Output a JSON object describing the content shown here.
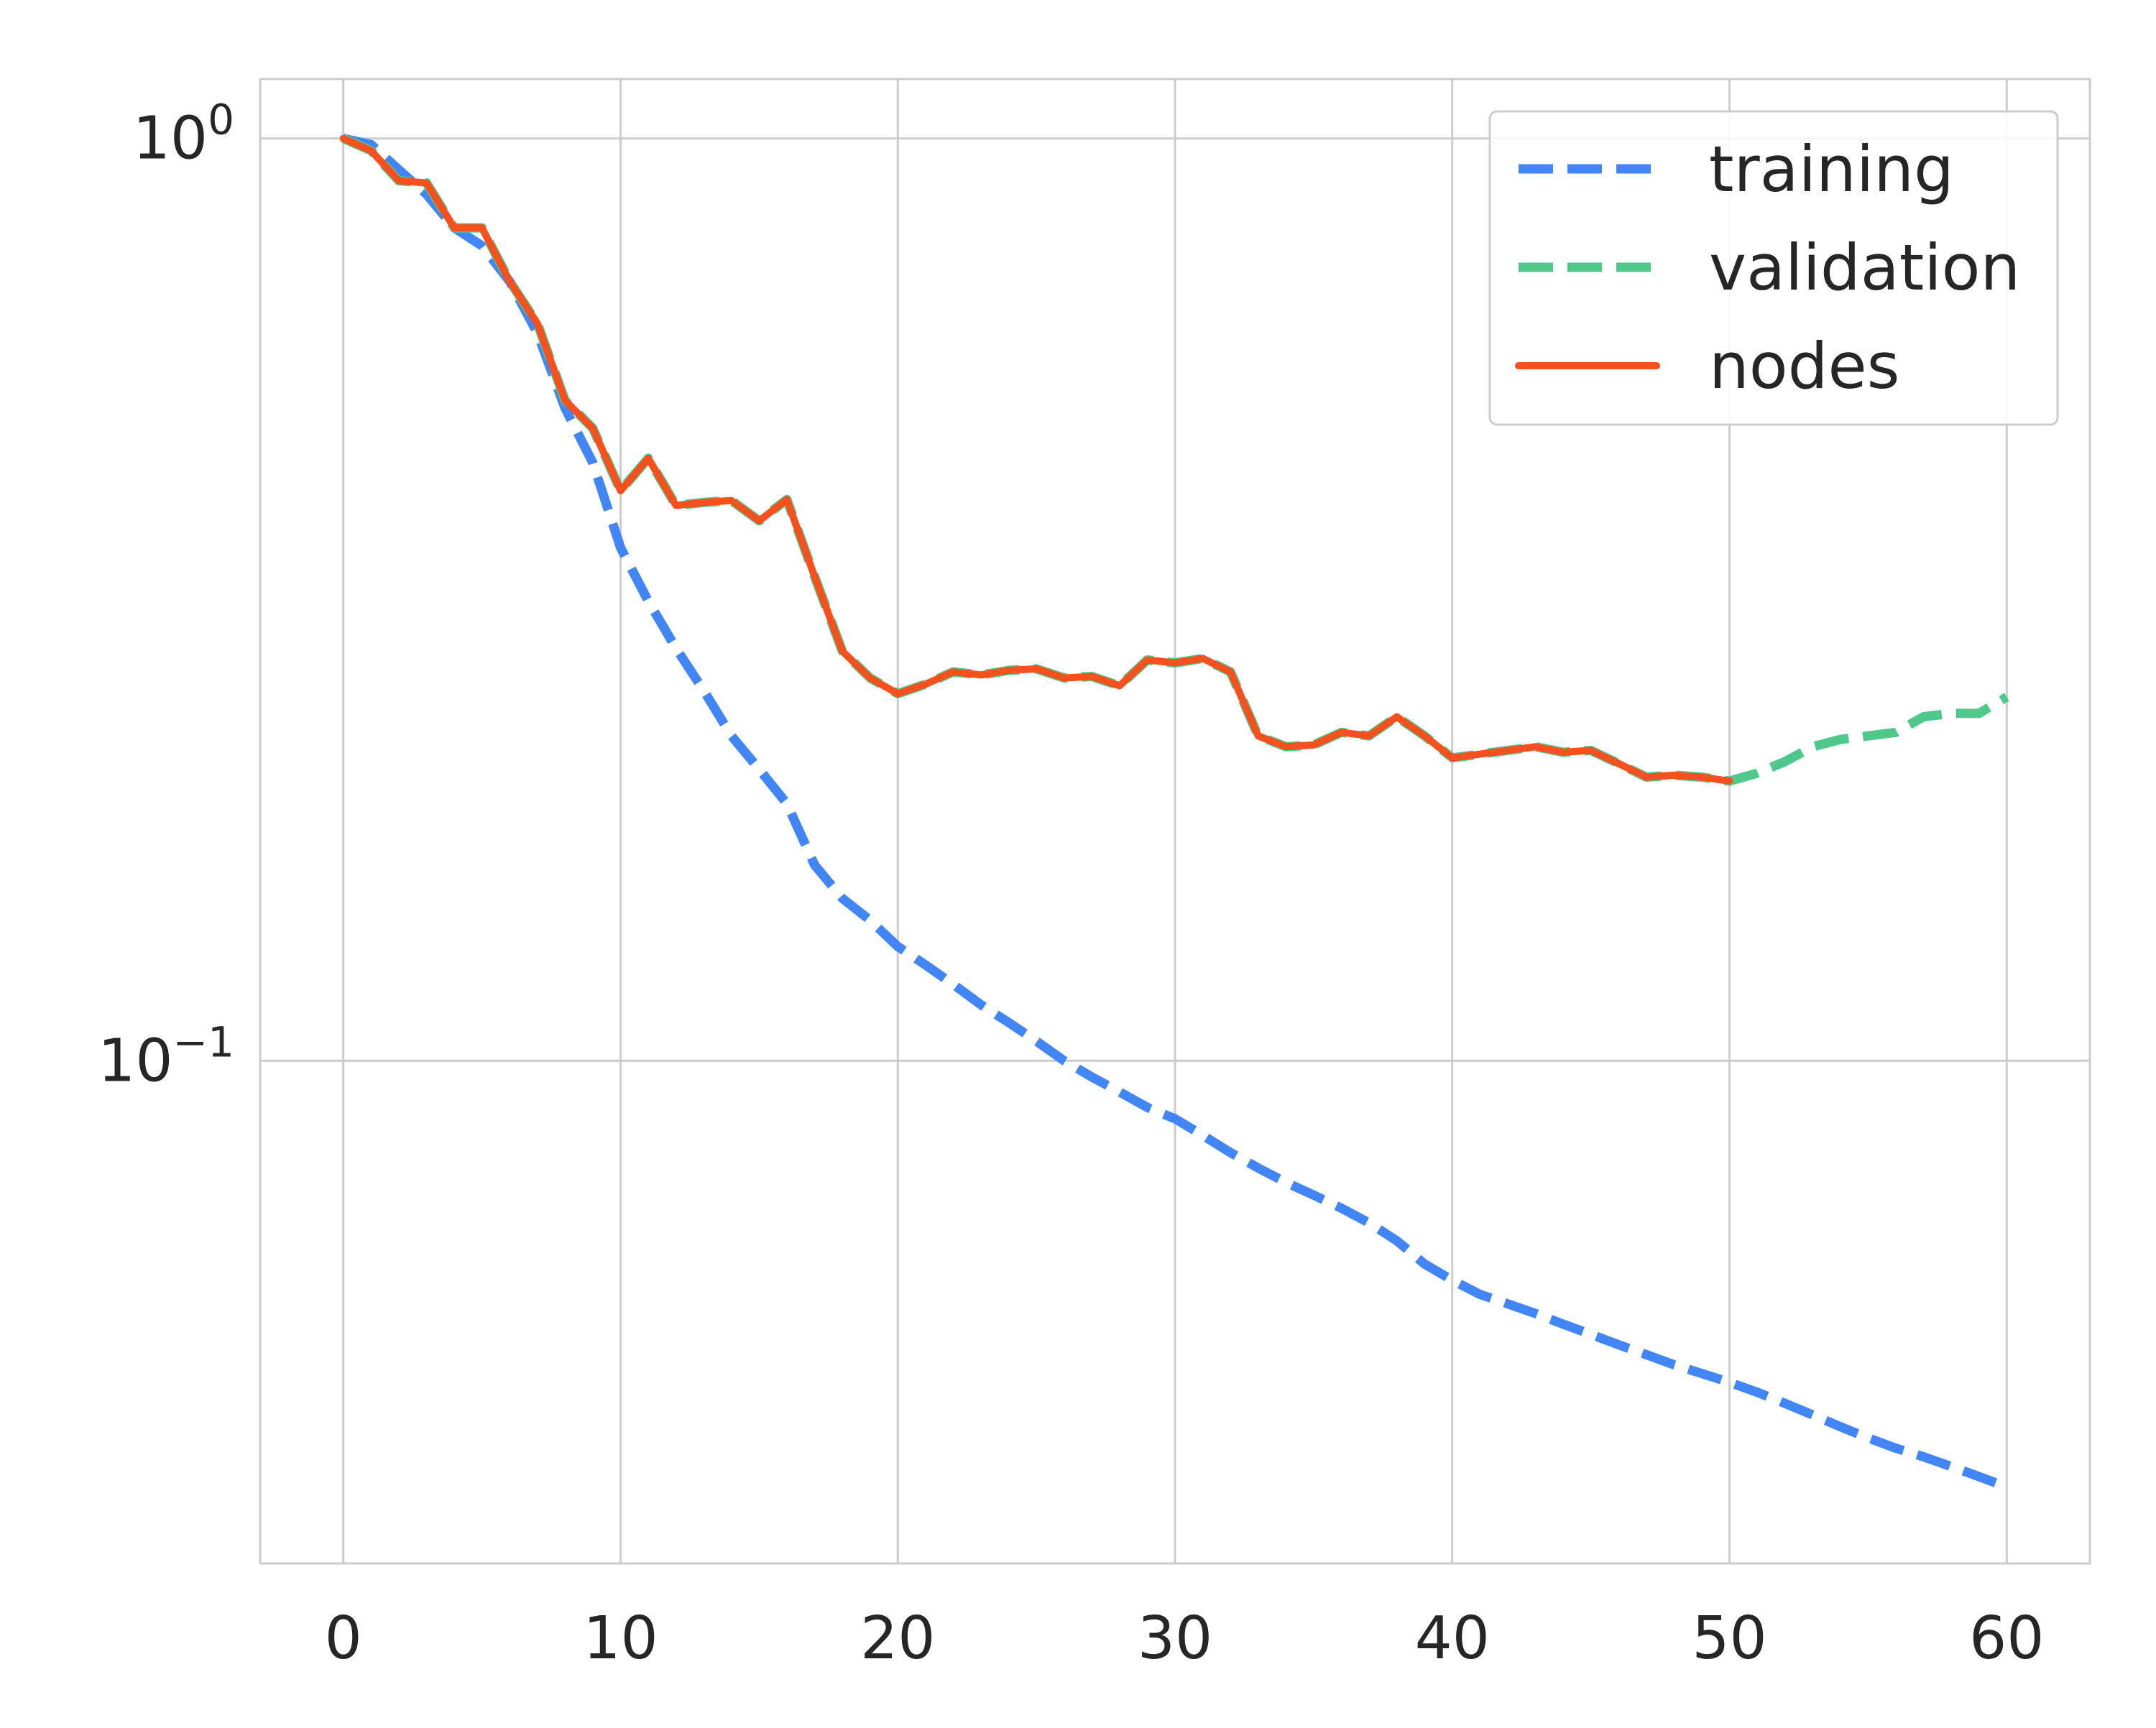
{
  "chart_data": {
    "type": "line",
    "title": "",
    "xlabel": "",
    "ylabel": "",
    "y_scale": "log",
    "xlim": [
      -3,
      63
    ],
    "ylim": [
      0.0285,
      1.16
    ],
    "x_ticks": [
      {
        "value": 0,
        "label": "0"
      },
      {
        "value": 10,
        "label": "10"
      },
      {
        "value": 20,
        "label": "20"
      },
      {
        "value": 30,
        "label": "30"
      },
      {
        "value": 40,
        "label": "40"
      },
      {
        "value": 50,
        "label": "50"
      },
      {
        "value": 60,
        "label": "60"
      }
    ],
    "y_ticks": [
      {
        "value": 1,
        "base": "10",
        "exponent": "0"
      },
      {
        "value": 0.1,
        "base": "10",
        "exponent": "−1"
      }
    ],
    "grid": true,
    "legend_position": "top-right",
    "series": [
      {
        "name": "training",
        "color": "#4285f4",
        "style": "dashed",
        "x": [
          0,
          1,
          2,
          3,
          4,
          5,
          6,
          7,
          8,
          9,
          10,
          11,
          12,
          13,
          14,
          15,
          16,
          17,
          18,
          19,
          20,
          21,
          22,
          23,
          24,
          25,
          26,
          27,
          28,
          29,
          30,
          31,
          32,
          33,
          34,
          35,
          36,
          37,
          38,
          39,
          40,
          41,
          42,
          43,
          44,
          45,
          46,
          47,
          48,
          49,
          50,
          51,
          52,
          53,
          54,
          55,
          56,
          57,
          58,
          59,
          60
        ],
        "y": [
          1.0,
          0.985,
          0.925,
          0.87,
          0.8,
          0.765,
          0.7,
          0.615,
          0.51,
          0.445,
          0.36,
          0.315,
          0.28,
          0.252,
          0.225,
          0.207,
          0.19,
          0.163,
          0.15,
          0.142,
          0.133,
          0.127,
          0.121,
          0.115,
          0.11,
          0.105,
          0.1,
          0.096,
          0.0925,
          0.089,
          0.0865,
          0.083,
          0.0795,
          0.0765,
          0.0738,
          0.0715,
          0.0692,
          0.0667,
          0.0638,
          0.0602,
          0.0578,
          0.0558,
          0.0545,
          0.0532,
          0.0518,
          0.0505,
          0.0492,
          0.048,
          0.0468,
          0.0458,
          0.0448,
          0.0437,
          0.0425,
          0.0413,
          0.0401,
          0.039,
          0.038,
          0.0372,
          0.0363,
          0.0354,
          0.0345
        ]
      },
      {
        "name": "validation",
        "color": "#4fc98b",
        "style": "dashed",
        "x": [
          0,
          1,
          2,
          3,
          4,
          5,
          6,
          7,
          8,
          9,
          10,
          11,
          12,
          13,
          14,
          15,
          16,
          17,
          18,
          19,
          20,
          21,
          22,
          23,
          24,
          25,
          26,
          27,
          28,
          29,
          30,
          31,
          32,
          33,
          34,
          35,
          36,
          37,
          38,
          39,
          40,
          41,
          42,
          43,
          44,
          45,
          46,
          47,
          48,
          49,
          50,
          51,
          52,
          53,
          54,
          55,
          56,
          57,
          58,
          59,
          60
        ],
        "y": [
          1.0,
          0.97,
          0.9,
          0.895,
          0.8,
          0.8,
          0.7,
          0.63,
          0.52,
          0.485,
          0.415,
          0.45,
          0.4,
          0.403,
          0.405,
          0.385,
          0.406,
          0.335,
          0.278,
          0.26,
          0.25,
          0.256,
          0.264,
          0.262,
          0.265,
          0.266,
          0.26,
          0.261,
          0.255,
          0.272,
          0.27,
          0.273,
          0.264,
          0.225,
          0.219,
          0.22,
          0.227,
          0.225,
          0.236,
          0.225,
          0.213,
          0.215,
          0.217,
          0.219,
          0.216,
          0.217,
          0.21,
          0.203,
          0.204,
          0.203,
          0.201,
          0.205,
          0.211,
          0.219,
          0.223,
          0.225,
          0.227,
          0.236,
          0.238,
          0.238,
          0.248
        ]
      },
      {
        "name": "nodes",
        "color": "#f4511e",
        "style": "solid",
        "x": [
          0,
          1,
          2,
          3,
          4,
          5,
          6,
          7,
          8,
          9,
          10,
          11,
          12,
          13,
          14,
          15,
          16,
          17,
          18,
          19,
          20,
          21,
          22,
          23,
          24,
          25,
          26,
          27,
          28,
          29,
          30,
          31,
          32,
          33,
          34,
          35,
          36,
          37,
          38,
          39,
          40,
          41,
          42,
          43,
          44,
          45,
          46,
          47,
          48,
          49,
          50
        ],
        "y": [
          1.0,
          0.97,
          0.9,
          0.895,
          0.8,
          0.8,
          0.7,
          0.63,
          0.52,
          0.485,
          0.415,
          0.45,
          0.4,
          0.403,
          0.405,
          0.385,
          0.406,
          0.335,
          0.278,
          0.26,
          0.25,
          0.256,
          0.264,
          0.262,
          0.265,
          0.266,
          0.26,
          0.261,
          0.255,
          0.272,
          0.27,
          0.273,
          0.264,
          0.225,
          0.219,
          0.22,
          0.227,
          0.225,
          0.236,
          0.225,
          0.213,
          0.215,
          0.217,
          0.219,
          0.216,
          0.217,
          0.21,
          0.203,
          0.204,
          0.203,
          0.201
        ]
      }
    ]
  }
}
